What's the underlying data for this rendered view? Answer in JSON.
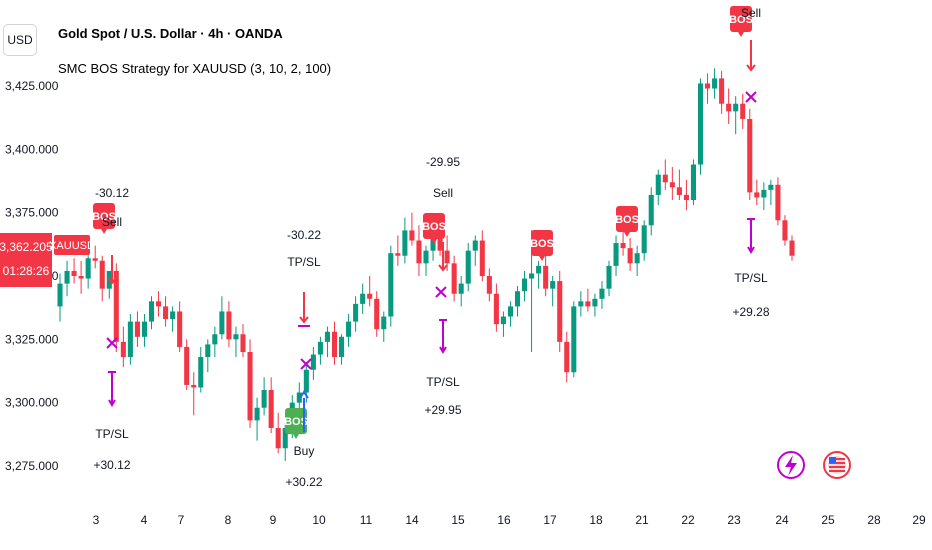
{
  "header": {
    "currency": "USD",
    "title": "Gold Spot / U.S. Dollar · 4h · OANDA",
    "strategy": "SMC BOS Strategy for XAUUSD (3, 10, 2, 100)"
  },
  "price_badge": {
    "price": "3,362.205",
    "countdown": "01:28:26",
    "symbol": "XAUUSD"
  },
  "colors": {
    "up": "#089981",
    "down": "#f23645",
    "bos_buy": "#4caf50",
    "bos_sell": "#f23645",
    "tp_marker": "#c000d0",
    "sell_arrow": "#f23645",
    "buy_arrow": "#2962ff"
  },
  "icons": [
    "lightning-icon",
    "us-flag-icon"
  ],
  "chart_data": {
    "type": "candlestick",
    "symbol": "XAUUSD",
    "timeframe": "4h",
    "ylim": [
      3260,
      3445
    ],
    "y_ticks": [
      "3,275.000",
      "3,300.000",
      "3,325.000",
      "3,350.000",
      "3,375.000",
      "3,400.000",
      "3,425.000"
    ],
    "y_tick_values": [
      3275,
      3300,
      3325,
      3350,
      3375,
      3400,
      3425
    ],
    "x_ticks": [
      "3",
      "4",
      "7",
      "8",
      "9",
      "10",
      "11",
      "14",
      "15",
      "16",
      "17",
      "18",
      "21",
      "22",
      "23",
      "24",
      "25",
      "28",
      "29"
    ],
    "candles": [
      [
        3338,
        3351,
        3332,
        3347
      ],
      [
        3347,
        3356,
        3342,
        3352
      ],
      [
        3352,
        3357,
        3347,
        3350
      ],
      [
        3350,
        3356,
        3343,
        3349
      ],
      [
        3349,
        3360,
        3345,
        3357
      ],
      [
        3357,
        3362,
        3353,
        3356
      ],
      [
        3356,
        3358,
        3340,
        3345
      ],
      [
        3345,
        3352,
        3341,
        3352
      ],
      [
        3352,
        3355,
        3320,
        3324
      ],
      [
        3324,
        3330,
        3314,
        3318
      ],
      [
        3318,
        3335,
        3315,
        3332
      ],
      [
        3332,
        3336,
        3322,
        3326
      ],
      [
        3326,
        3335,
        3322,
        3332
      ],
      [
        3332,
        3342,
        3329,
        3340
      ],
      [
        3340,
        3344,
        3334,
        3338
      ],
      [
        3338,
        3342,
        3330,
        3333
      ],
      [
        3333,
        3338,
        3328,
        3336
      ],
      [
        3336,
        3340,
        3320,
        3322
      ],
      [
        3322,
        3325,
        3305,
        3307
      ],
      [
        3307,
        3312,
        3295,
        3306
      ],
      [
        3306,
        3322,
        3304,
        3318
      ],
      [
        3318,
        3325,
        3312,
        3323
      ],
      [
        3323,
        3330,
        3318,
        3327
      ],
      [
        3327,
        3342,
        3325,
        3336
      ],
      [
        3336,
        3340,
        3322,
        3325
      ],
      [
        3325,
        3330,
        3318,
        3327
      ],
      [
        3327,
        3331,
        3318,
        3320
      ],
      [
        3320,
        3325,
        3290,
        3293
      ],
      [
        3293,
        3302,
        3285,
        3298
      ],
      [
        3298,
        3310,
        3295,
        3305
      ],
      [
        3305,
        3310,
        3288,
        3290
      ],
      [
        3290,
        3296,
        3280,
        3282
      ],
      [
        3282,
        3292,
        3277,
        3290
      ],
      [
        3290,
        3303,
        3286,
        3300
      ],
      [
        3300,
        3308,
        3296,
        3304
      ],
      [
        3304,
        3316,
        3300,
        3313
      ],
      [
        3313,
        3322,
        3309,
        3319
      ],
      [
        3319,
        3326,
        3315,
        3324
      ],
      [
        3324,
        3330,
        3318,
        3328
      ],
      [
        3328,
        3332,
        3315,
        3318
      ],
      [
        3318,
        3327,
        3315,
        3326
      ],
      [
        3326,
        3335,
        3322,
        3332
      ],
      [
        3332,
        3342,
        3328,
        3339
      ],
      [
        3339,
        3347,
        3335,
        3343
      ],
      [
        3343,
        3350,
        3338,
        3341
      ],
      [
        3341,
        3344,
        3326,
        3329
      ],
      [
        3329,
        3336,
        3324,
        3334
      ],
      [
        3334,
        3362,
        3330,
        3359
      ],
      [
        3359,
        3366,
        3354,
        3358
      ],
      [
        3358,
        3373,
        3355,
        3368
      ],
      [
        3368,
        3375,
        3362,
        3364
      ],
      [
        3364,
        3370,
        3350,
        3355
      ],
      [
        3355,
        3362,
        3350,
        3360
      ],
      [
        3360,
        3368,
        3356,
        3365
      ],
      [
        3365,
        3370,
        3358,
        3360
      ],
      [
        3360,
        3366,
        3352,
        3355
      ],
      [
        3355,
        3358,
        3340,
        3343
      ],
      [
        3343,
        3350,
        3338,
        3347
      ],
      [
        3347,
        3363,
        3344,
        3360
      ],
      [
        3360,
        3366,
        3354,
        3364
      ],
      [
        3364,
        3368,
        3348,
        3350
      ],
      [
        3350,
        3353,
        3340,
        3343
      ],
      [
        3343,
        3347,
        3328,
        3331
      ],
      [
        3331,
        3336,
        3326,
        3334
      ],
      [
        3334,
        3340,
        3330,
        3338
      ],
      [
        3338,
        3346,
        3334,
        3344
      ],
      [
        3344,
        3352,
        3340,
        3349
      ],
      [
        3349,
        3368,
        3320,
        3351
      ],
      [
        3351,
        3356,
        3345,
        3354
      ],
      [
        3354,
        3360,
        3342,
        3345
      ],
      [
        3345,
        3350,
        3338,
        3348
      ],
      [
        3348,
        3352,
        3320,
        3324
      ],
      [
        3324,
        3328,
        3308,
        3312
      ],
      [
        3312,
        3340,
        3310,
        3338
      ],
      [
        3338,
        3344,
        3334,
        3340
      ],
      [
        3340,
        3345,
        3336,
        3338
      ],
      [
        3338,
        3343,
        3334,
        3341
      ],
      [
        3341,
        3348,
        3337,
        3345
      ],
      [
        3345,
        3356,
        3342,
        3354
      ],
      [
        3354,
        3366,
        3350,
        3363
      ],
      [
        3363,
        3370,
        3358,
        3361
      ],
      [
        3361,
        3365,
        3352,
        3355
      ],
      [
        3355,
        3362,
        3350,
        3359
      ],
      [
        3359,
        3372,
        3356,
        3370
      ],
      [
        3370,
        3385,
        3366,
        3382
      ],
      [
        3382,
        3392,
        3378,
        3390
      ],
      [
        3390,
        3396,
        3384,
        3387
      ],
      [
        3387,
        3393,
        3380,
        3385
      ],
      [
        3385,
        3392,
        3380,
        3382
      ],
      [
        3382,
        3388,
        3376,
        3380
      ],
      [
        3380,
        3396,
        3378,
        3394
      ],
      [
        3394,
        3428,
        3390,
        3426
      ],
      [
        3426,
        3430,
        3418,
        3424
      ],
      [
        3424,
        3432,
        3420,
        3428
      ],
      [
        3428,
        3431,
        3414,
        3418
      ],
      [
        3418,
        3424,
        3410,
        3415
      ],
      [
        3415,
        3421,
        3406,
        3418
      ],
      [
        3418,
        3422,
        3408,
        3412
      ],
      [
        3412,
        3416,
        3380,
        3383
      ],
      [
        3383,
        3388,
        3378,
        3381
      ],
      [
        3381,
        3387,
        3376,
        3384
      ],
      [
        3384,
        3388,
        3378,
        3386
      ],
      [
        3386,
        3389,
        3370,
        3372
      ],
      [
        3372,
        3374,
        3362,
        3364
      ],
      [
        3364,
        3366,
        3356,
        3358
      ]
    ],
    "signals": [
      {
        "kind": "sell_entry",
        "pnl": "-30.12",
        "label": "Sell",
        "bos": "BOS"
      },
      {
        "kind": "tp_exit",
        "label": "TP/SL",
        "pnl": "+30.12"
      },
      {
        "kind": "buy_entry",
        "bos": "BOS",
        "label": "Buy",
        "pnl": "+30.22"
      },
      {
        "kind": "tp_exit",
        "pnl": "-30.22",
        "label": "TP/SL"
      },
      {
        "kind": "sell_entry",
        "pnl": "-29.95",
        "label": "Sell",
        "bos": "BOS"
      },
      {
        "kind": "tp_exit",
        "label": "TP/SL",
        "pnl": "+29.95"
      },
      {
        "kind": "bos",
        "bos": "BOS"
      },
      {
        "kind": "bos",
        "bos": "BOS"
      },
      {
        "kind": "sell_entry",
        "bos": "BOS",
        "label": "Sell"
      },
      {
        "kind": "tp_exit",
        "label": "TP/SL",
        "pnl": "+29.28"
      }
    ],
    "grid": false,
    "legend": "none"
  }
}
